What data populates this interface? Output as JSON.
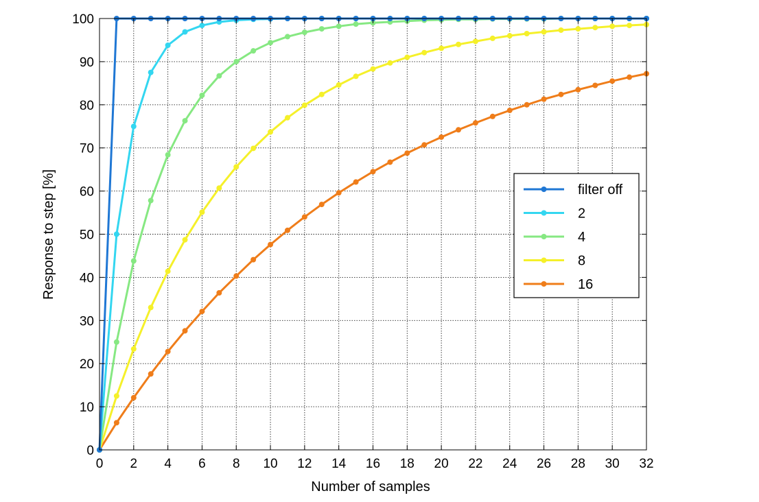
{
  "chart_data": {
    "type": "line",
    "title": "",
    "xlabel": "Number of samples",
    "ylabel": "Response to step [%]",
    "xlim": [
      0,
      32
    ],
    "ylim": [
      0,
      100
    ],
    "xticks": [
      0,
      2,
      4,
      6,
      8,
      10,
      12,
      14,
      16,
      18,
      20,
      22,
      24,
      26,
      28,
      30,
      32
    ],
    "yticks": [
      0,
      10,
      20,
      30,
      40,
      50,
      60,
      70,
      80,
      90,
      100
    ],
    "grid": true,
    "legend_position": "center-right",
    "x": [
      0,
      1,
      2,
      3,
      4,
      5,
      6,
      7,
      8,
      9,
      10,
      11,
      12,
      13,
      14,
      15,
      16,
      17,
      18,
      19,
      20,
      21,
      22,
      23,
      24,
      25,
      26,
      27,
      28,
      29,
      30,
      31,
      32
    ],
    "series": [
      {
        "name": "filter off",
        "color": "#1f77d4",
        "values": [
          0,
          100,
          100,
          100,
          100,
          100,
          100,
          100,
          100,
          100,
          100,
          100,
          100,
          100,
          100,
          100,
          100,
          100,
          100,
          100,
          100,
          100,
          100,
          100,
          100,
          100,
          100,
          100,
          100,
          100,
          100,
          100,
          100
        ]
      },
      {
        "name": "2",
        "color": "#33d6f0",
        "values": [
          0,
          50,
          75,
          87.5,
          93.8,
          96.9,
          98.4,
          99.2,
          99.6,
          99.8,
          99.9,
          100,
          100,
          100,
          100,
          100,
          100,
          100,
          100,
          100,
          100,
          100,
          100,
          100,
          100,
          100,
          100,
          100,
          100,
          100,
          100,
          100,
          100
        ]
      },
      {
        "name": "4",
        "color": "#86e882",
        "values": [
          0,
          25,
          43.8,
          57.8,
          68.4,
          76.3,
          82.2,
          86.7,
          90,
          92.5,
          94.4,
          95.8,
          96.8,
          97.6,
          98.2,
          98.7,
          99,
          99.2,
          99.4,
          99.6,
          99.7,
          99.8,
          99.8,
          99.9,
          99.9,
          99.9,
          99.9,
          100,
          100,
          100,
          100,
          100,
          100
        ]
      },
      {
        "name": "8",
        "color": "#f5f02a",
        "values": [
          0,
          12.5,
          23.4,
          33,
          41.4,
          48.7,
          55.1,
          60.7,
          65.6,
          69.9,
          73.7,
          77,
          79.9,
          82.4,
          84.6,
          86.6,
          88.3,
          89.7,
          91,
          92.1,
          93.1,
          94,
          94.7,
          95.4,
          96,
          96.5,
          96.9,
          97.3,
          97.6,
          97.9,
          98.2,
          98.4,
          98.6
        ]
      },
      {
        "name": "16",
        "color": "#ef7d1a",
        "values": [
          0,
          6.3,
          12.1,
          17.6,
          22.8,
          27.6,
          32.1,
          36.4,
          40.3,
          44.1,
          47.6,
          50.9,
          54,
          56.9,
          59.6,
          62.1,
          64.5,
          66.7,
          68.8,
          70.7,
          72.5,
          74.2,
          75.8,
          77.3,
          78.7,
          80,
          81.3,
          82.4,
          83.5,
          84.5,
          85.5,
          86.4,
          87.2
        ]
      }
    ]
  }
}
